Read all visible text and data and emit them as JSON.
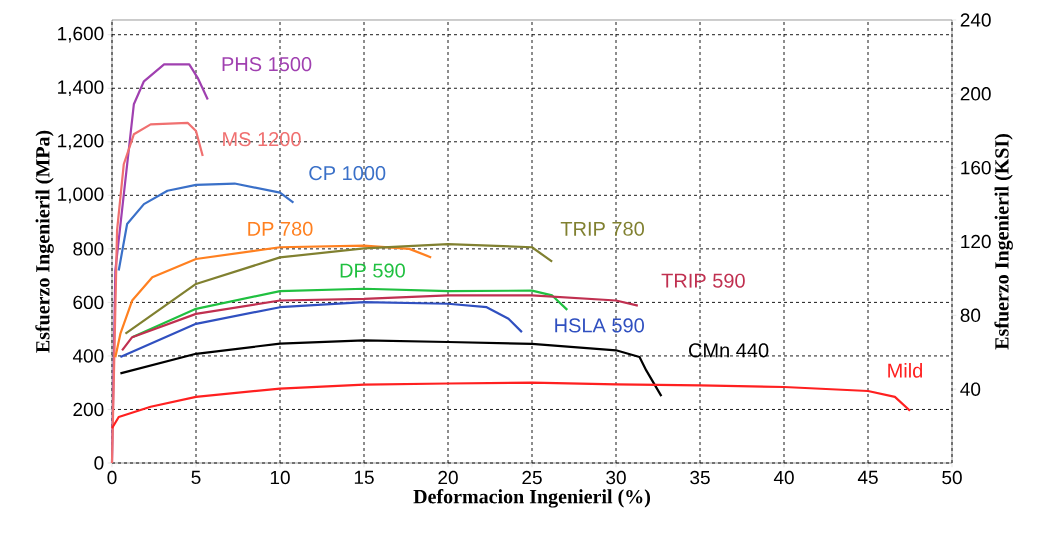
{
  "chart_data": {
    "type": "line",
    "xlabel": "Deformacion Ingenieril (%)",
    "ylabel": "Esfuerzo Ingenieril (MPa)",
    "y2label": "Esfuerzo Ingenieril (KSI)",
    "xlim": [
      0,
      50
    ],
    "xticks": [
      0,
      5,
      10,
      15,
      20,
      25,
      30,
      35,
      40,
      45,
      50
    ],
    "ylim": [
      0,
      1655
    ],
    "yticks": [
      0,
      200,
      400,
      600,
      800,
      {
        "value": 1000,
        "label": "1,000"
      },
      {
        "value": 1200,
        "label": "1,200"
      },
      {
        "value": 1400,
        "label": "1,400"
      },
      {
        "value": 1600,
        "label": "1,600"
      }
    ],
    "y2lim": [
      0,
      240
    ],
    "y2ticks": [
      40,
      80,
      120,
      160,
      200,
      240
    ],
    "grid": true,
    "marker": "none",
    "line_style": "solid",
    "series": [
      {
        "name": "PHS 1500",
        "color": "#a040b0",
        "x": [
          0,
          0.2,
          1.3,
          1.9,
          3.1,
          4.6,
          5.1,
          5.7
        ],
        "values": [
          0,
          720,
          1340,
          1426,
          1489,
          1489,
          1439,
          1358
        ]
      },
      {
        "name": "MS 1200",
        "color": "#f07070",
        "x": [
          0,
          0.3,
          0.7,
          1.3,
          2.3,
          4.5,
          5.0,
          5.4
        ],
        "values": [
          0,
          868,
          1116,
          1228,
          1265,
          1271,
          1240,
          1147
        ]
      },
      {
        "name": "CP 1000",
        "color": "#3a70c8",
        "x": [
          0.4,
          0.9,
          1.9,
          3.3,
          5,
          7.3,
          10,
          10.8
        ],
        "values": [
          719,
          893,
          967,
          1017,
          1039,
          1044,
          1010,
          973
        ]
      },
      {
        "name": "DP 780",
        "color": "#ff8020",
        "x": [
          0.2,
          0.5,
          1.2,
          2.4,
          5,
          10,
          15,
          17.7,
          19
        ],
        "values": [
          395,
          483,
          607,
          694,
          762,
          806,
          812,
          800,
          768
        ]
      },
      {
        "name": "TRIP 780",
        "color": "#808030",
        "x": [
          0.8,
          5,
          10,
          15,
          20,
          25,
          26.2
        ],
        "values": [
          483,
          669,
          768,
          802,
          818,
          806,
          752
        ]
      },
      {
        "name": "DP 590",
        "color": "#20c040",
        "x": [
          1.2,
          5,
          10,
          15,
          20,
          25,
          26.2,
          27.1
        ],
        "values": [
          470,
          576,
          642,
          651,
          642,
          644,
          626,
          572
        ]
      },
      {
        "name": "TRIP 590",
        "color": "#c03050",
        "x": [
          0.6,
          1.2,
          5,
          10,
          15,
          20,
          25,
          30,
          31.3
        ],
        "values": [
          421,
          470,
          557,
          607,
          613,
          626,
          626,
          607,
          588
        ]
      },
      {
        "name": "HSLA 590",
        "color": "#3050c0",
        "x": [
          0.5,
          5,
          10,
          15,
          20,
          22.3,
          23.6,
          24.4
        ],
        "values": [
          396,
          520,
          582,
          601,
          595,
          582,
          539,
          489
        ]
      },
      {
        "name": "CMn 440",
        "color": "#000000",
        "x": [
          0.5,
          5,
          10,
          15,
          20,
          25,
          30,
          31.4,
          31.8,
          32.7
        ],
        "values": [
          335,
          408,
          446,
          458,
          452,
          445,
          421,
          396,
          346,
          250
        ]
      },
      {
        "name": "Mild",
        "color": "#ff2020",
        "x": [
          0,
          0.4,
          2.3,
          5,
          10,
          15,
          20,
          25,
          30,
          35,
          40,
          45,
          46.6,
          47.5
        ],
        "values": [
          130,
          172,
          210,
          247,
          278,
          293,
          297,
          300,
          294,
          290,
          284,
          269,
          247,
          195
        ]
      }
    ]
  }
}
